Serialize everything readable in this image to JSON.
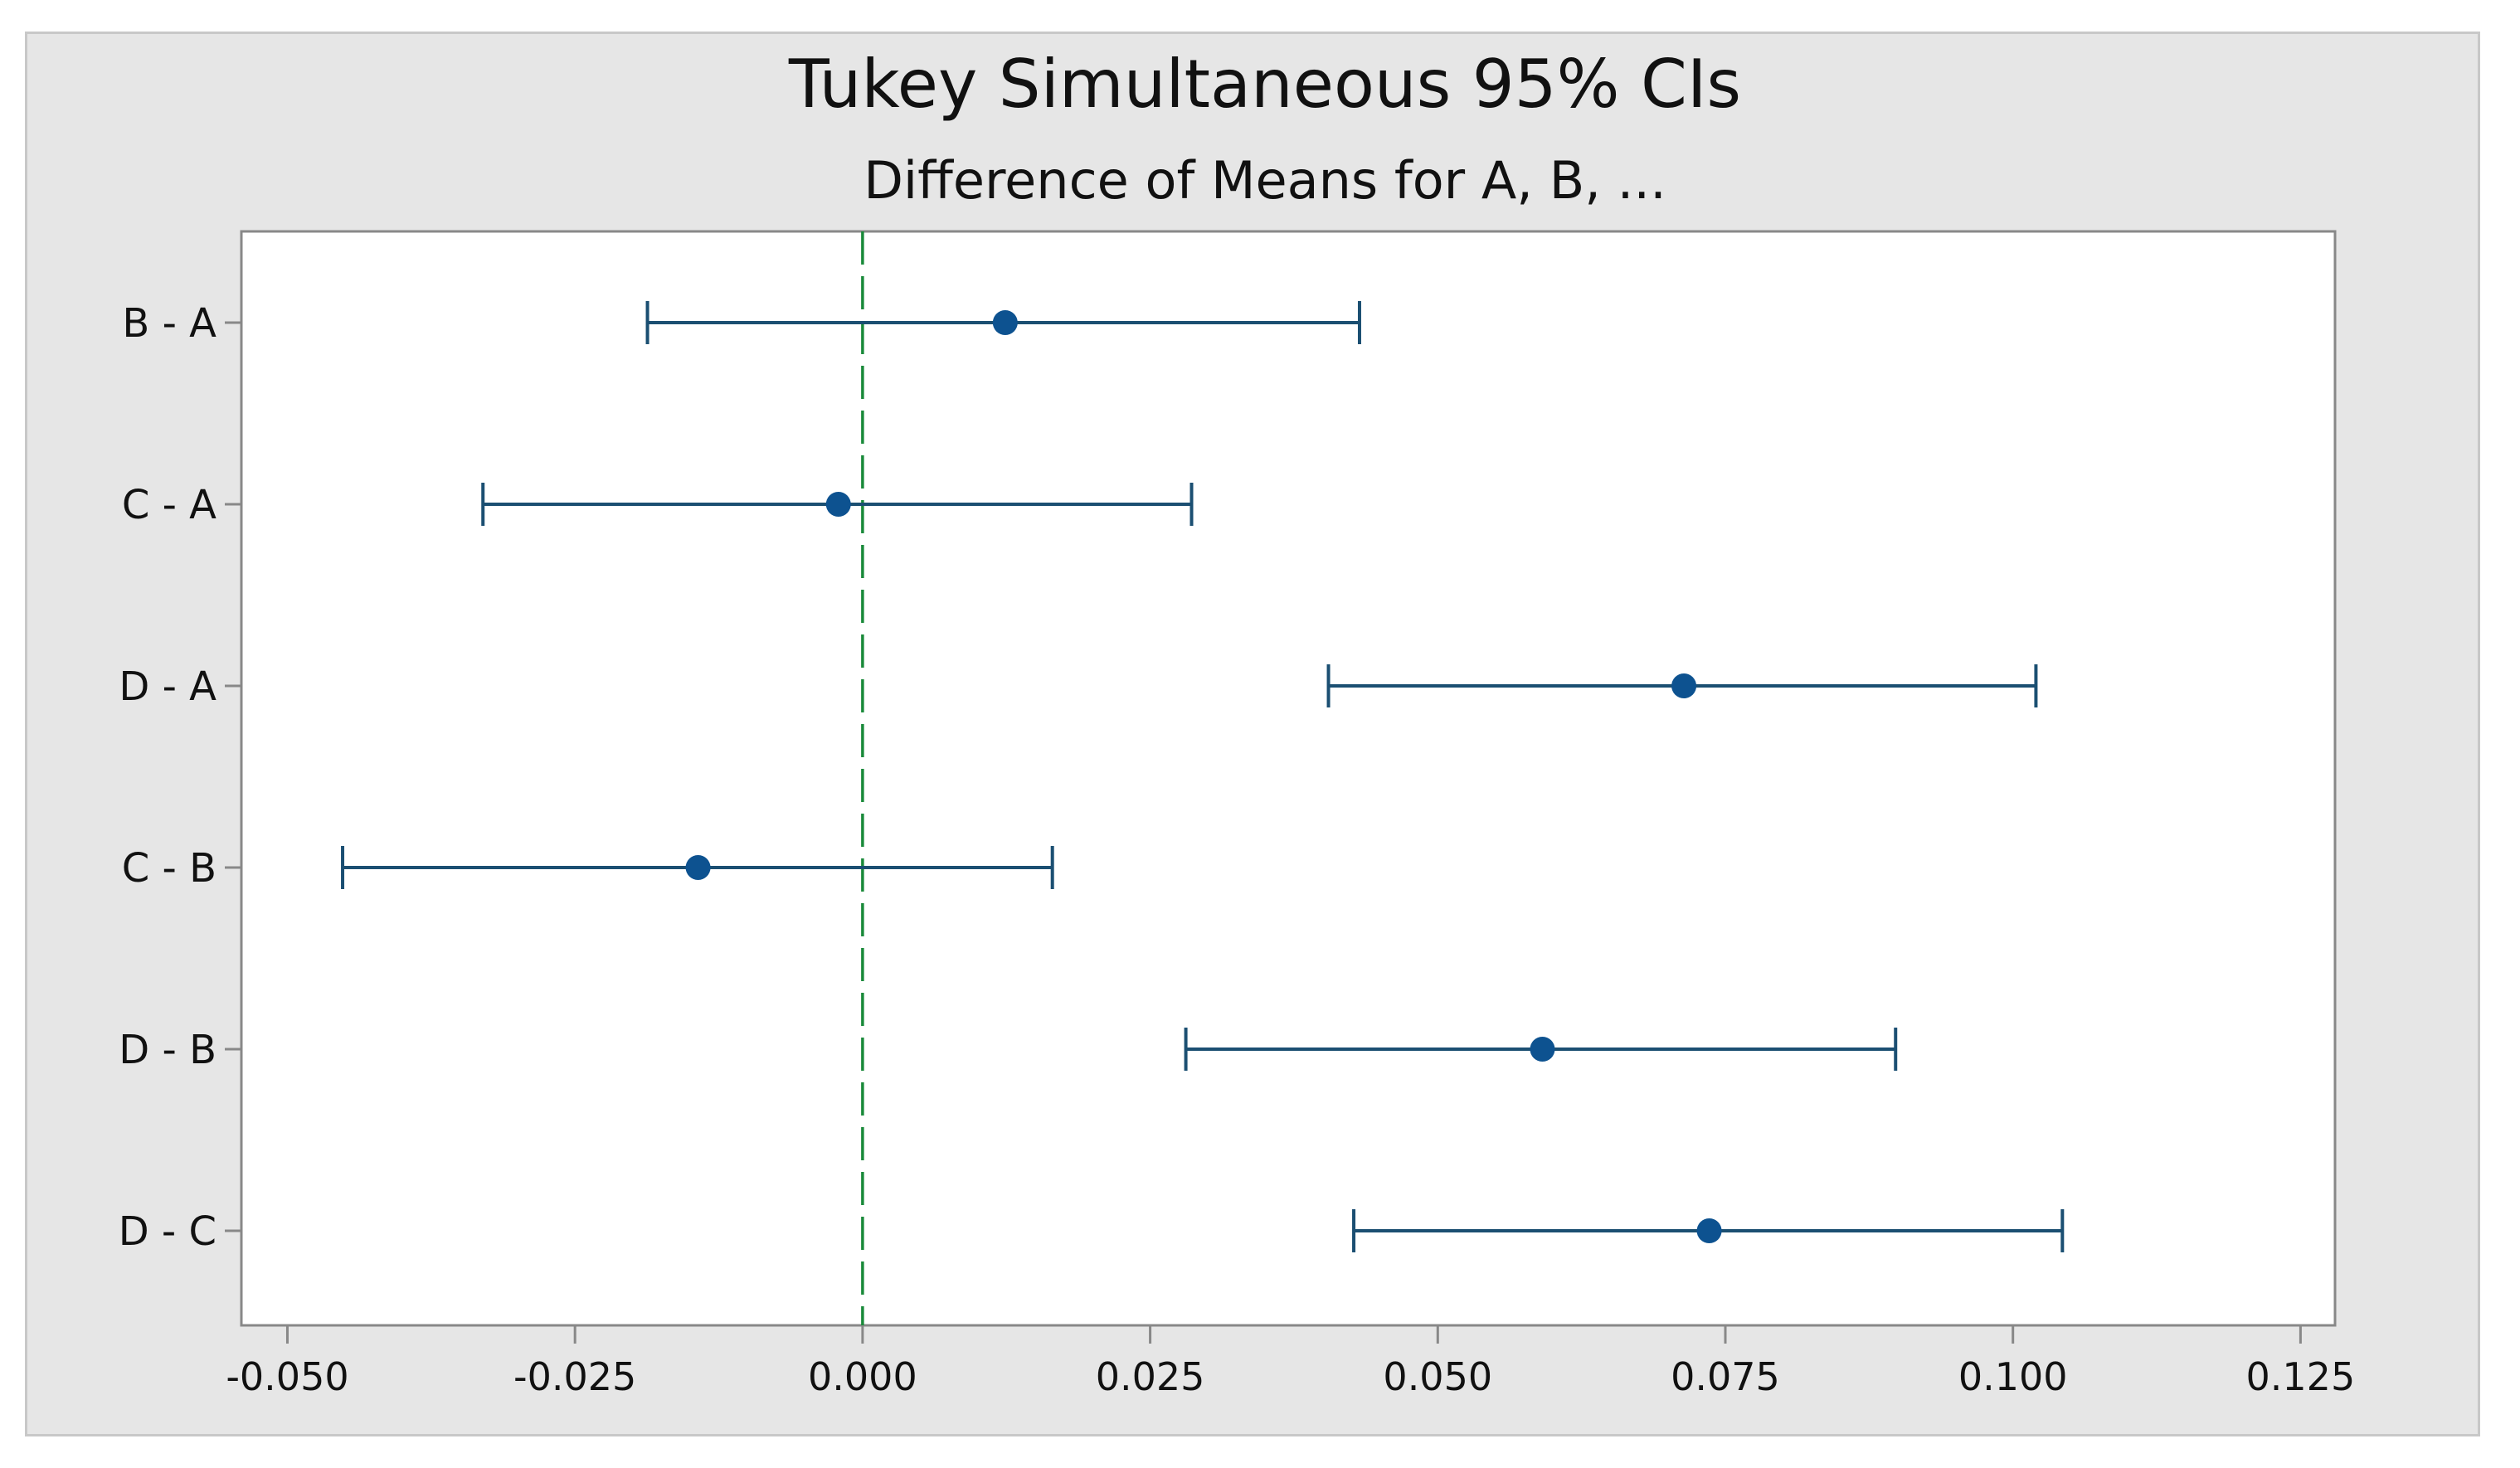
{
  "chart_data": {
    "type": "interval",
    "title": "Tukey Simultaneous 95% CIs",
    "subtitle": "Difference of Means for A, B, ...",
    "xlabel": "",
    "ylabel": "",
    "xlim": [
      -0.054,
      0.128
    ],
    "xticks": [
      -0.05,
      -0.025,
      0.0,
      0.025,
      0.05,
      0.075,
      0.1,
      0.125
    ],
    "xtick_labels": [
      "-0.050",
      "-0.025",
      "0.000",
      "0.025",
      "0.050",
      "0.075",
      "0.100",
      "0.125"
    ],
    "reference_line": 0.0,
    "grid": false,
    "series": [
      {
        "category": "B - A",
        "mean": 0.0124,
        "lower": -0.0187,
        "upper": 0.0432
      },
      {
        "category": "C - A",
        "mean": -0.0021,
        "lower": -0.033,
        "upper": 0.0286
      },
      {
        "category": "D - A",
        "mean": 0.0714,
        "lower": 0.0405,
        "upper": 0.102
      },
      {
        "category": "C - B",
        "mean": -0.0143,
        "lower": -0.0452,
        "upper": 0.0165
      },
      {
        "category": "D - B",
        "mean": 0.0591,
        "lower": 0.0281,
        "upper": 0.0898
      },
      {
        "category": "D - C",
        "mean": 0.0736,
        "lower": 0.0427,
        "upper": 0.1043
      }
    ]
  },
  "colors": {
    "interval": "#1b4f72",
    "point": "#0d5290",
    "reference": "#1a8a3a",
    "axis": "#888888",
    "frame_bg": "#e6e6e6",
    "plot_bg": "#ffffff"
  }
}
